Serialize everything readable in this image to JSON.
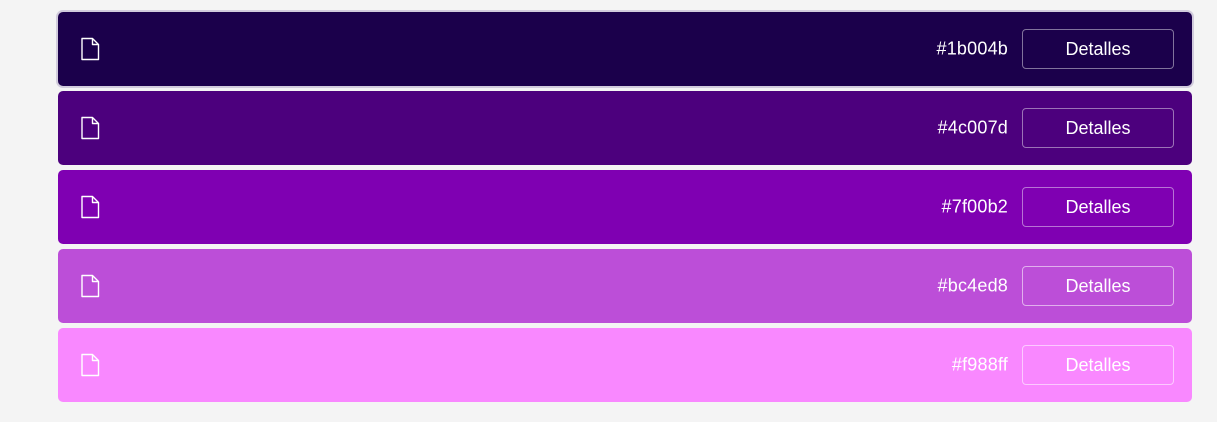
{
  "rows": [
    {
      "hex": "#1b004b",
      "button_label": "Detalles",
      "icon": "file-icon",
      "color": "#1b004b"
    },
    {
      "hex": "#4c007d",
      "button_label": "Detalles",
      "icon": "file-icon",
      "color": "#4c007d"
    },
    {
      "hex": "#7f00b2",
      "button_label": "Detalles",
      "icon": "file-icon",
      "color": "#7f00b2"
    },
    {
      "hex": "#bc4ed8",
      "button_label": "Detalles",
      "icon": "file-icon",
      "color": "#bc4ed8"
    },
    {
      "hex": "#f988ff",
      "button_label": "Detalles",
      "icon": "file-icon",
      "color": "#f988ff"
    }
  ]
}
